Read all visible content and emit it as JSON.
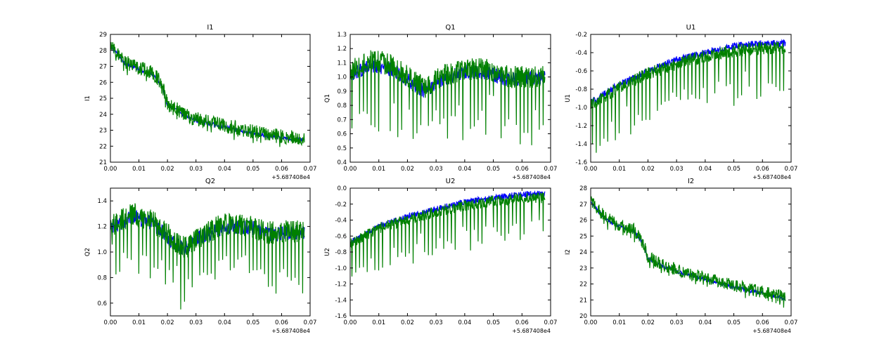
{
  "chart_data": [
    {
      "type": "line",
      "title": "I1",
      "xlabel": "",
      "ylabel": "I1",
      "xlim": [
        0.0,
        0.07
      ],
      "ylim": [
        21,
        29
      ],
      "xticks": [
        "0.00",
        "0.01",
        "0.02",
        "0.03",
        "0.04",
        "0.05",
        "0.06",
        "0.07"
      ],
      "yticks": [
        "21",
        "22",
        "23",
        "24",
        "25",
        "26",
        "27",
        "28",
        "29"
      ],
      "offset_label": "+5.687408e4",
      "series": [
        {
          "name": "blue",
          "color": "#0000ff",
          "x": [
            0.0,
            0.005,
            0.01,
            0.015,
            0.018,
            0.02,
            0.025,
            0.03,
            0.04,
            0.05,
            0.06,
            0.068
          ],
          "y": [
            28.3,
            27.2,
            26.8,
            26.5,
            25.8,
            24.6,
            24.0,
            23.6,
            23.2,
            22.8,
            22.5,
            22.4
          ],
          "noise": 0.12,
          "dips": 0
        },
        {
          "name": "green",
          "color": "#008000",
          "x": [
            0.0,
            0.005,
            0.01,
            0.015,
            0.018,
            0.02,
            0.025,
            0.03,
            0.04,
            0.05,
            0.06,
            0.068
          ],
          "y": [
            28.4,
            27.3,
            26.9,
            26.6,
            25.9,
            24.7,
            24.1,
            23.7,
            23.3,
            22.9,
            22.6,
            22.5
          ],
          "noise": 0.45,
          "dips": 0.4
        }
      ]
    },
    {
      "type": "line",
      "title": "Q1",
      "xlabel": "",
      "ylabel": "Q1",
      "xlim": [
        0.0,
        0.07
      ],
      "ylim": [
        0.4,
        1.3
      ],
      "xticks": [
        "0.00",
        "0.01",
        "0.02",
        "0.03",
        "0.04",
        "0.05",
        "0.06",
        "0.07"
      ],
      "yticks": [
        "0.4",
        "0.5",
        "0.6",
        "0.7",
        "0.8",
        "0.9",
        "1.0",
        "1.1",
        "1.2",
        "1.3"
      ],
      "offset_label": "+5.687408e4",
      "series": [
        {
          "name": "blue",
          "color": "#0000ff",
          "x": [
            0.0,
            0.008,
            0.015,
            0.022,
            0.026,
            0.032,
            0.04,
            0.048,
            0.055,
            0.062,
            0.068
          ],
          "y": [
            1.02,
            1.08,
            1.05,
            0.95,
            0.9,
            0.98,
            1.04,
            1.03,
            0.98,
            0.99,
            1.0
          ],
          "noise": 0.05,
          "dips": 0
        },
        {
          "name": "green",
          "color": "#008000",
          "x": [
            0.0,
            0.008,
            0.015,
            0.022,
            0.026,
            0.032,
            0.04,
            0.048,
            0.055,
            0.062,
            0.068
          ],
          "y": [
            1.05,
            1.12,
            1.08,
            0.97,
            0.92,
            1.0,
            1.06,
            1.05,
            1.0,
            1.0,
            1.0
          ],
          "noise": 0.08,
          "dips": 0.45
        }
      ]
    },
    {
      "type": "line",
      "title": "U1",
      "xlabel": "",
      "ylabel": "U1",
      "xlim": [
        0.0,
        0.07
      ],
      "ylim": [
        -1.6,
        -0.2
      ],
      "xticks": [
        "0.00",
        "0.01",
        "0.02",
        "0.03",
        "0.04",
        "0.05",
        "0.06",
        "0.07"
      ],
      "yticks": [
        "-1.6",
        "-1.4",
        "-1.2",
        "-1.0",
        "-0.8",
        "-0.6",
        "-0.4",
        "-0.2"
      ],
      "offset_label": "+5.687408e4",
      "series": [
        {
          "name": "blue",
          "color": "#0000ff",
          "x": [
            0.0,
            0.01,
            0.02,
            0.03,
            0.04,
            0.05,
            0.06,
            0.068
          ],
          "y": [
            -0.95,
            -0.75,
            -0.6,
            -0.48,
            -0.4,
            -0.33,
            -0.3,
            -0.3
          ],
          "noise": 0.04,
          "dips": 0
        },
        {
          "name": "green",
          "color": "#008000",
          "x": [
            0.0,
            0.01,
            0.02,
            0.03,
            0.04,
            0.05,
            0.06,
            0.068
          ],
          "y": [
            -0.98,
            -0.78,
            -0.63,
            -0.52,
            -0.44,
            -0.38,
            -0.35,
            -0.35
          ],
          "noise": 0.07,
          "dips": 0.55
        }
      ]
    },
    {
      "type": "line",
      "title": "Q2",
      "xlabel": "",
      "ylabel": "Q2",
      "xlim": [
        0.0,
        0.07
      ],
      "ylim": [
        0.5,
        1.5
      ],
      "xticks": [
        "0.00",
        "0.01",
        "0.02",
        "0.03",
        "0.04",
        "0.05",
        "0.06",
        "0.07"
      ],
      "yticks": [
        "0.6",
        "0.8",
        "1.0",
        "1.2",
        "1.4"
      ],
      "offset_label": "+5.687408e4",
      "series": [
        {
          "name": "blue",
          "color": "#0000ff",
          "x": [
            0.0,
            0.008,
            0.015,
            0.022,
            0.026,
            0.032,
            0.04,
            0.048,
            0.055,
            0.062,
            0.068
          ],
          "y": [
            1.18,
            1.28,
            1.22,
            1.08,
            1.02,
            1.12,
            1.2,
            1.2,
            1.14,
            1.15,
            1.16
          ],
          "noise": 0.06,
          "dips": 0
        },
        {
          "name": "green",
          "color": "#008000",
          "x": [
            0.0,
            0.008,
            0.015,
            0.022,
            0.026,
            0.032,
            0.04,
            0.048,
            0.055,
            0.062,
            0.068
          ],
          "y": [
            1.2,
            1.3,
            1.24,
            1.1,
            1.03,
            1.13,
            1.22,
            1.21,
            1.15,
            1.16,
            1.17
          ],
          "noise": 0.09,
          "dips": 0.45
        }
      ]
    },
    {
      "type": "line",
      "title": "U2",
      "xlabel": "",
      "ylabel": "U2",
      "xlim": [
        0.0,
        0.07
      ],
      "ylim": [
        -1.6,
        0.0
      ],
      "xticks": [
        "0.00",
        "0.01",
        "0.02",
        "0.03",
        "0.04",
        "0.05",
        "0.06",
        "0.07"
      ],
      "yticks": [
        "-1.6",
        "-1.4",
        "-1.2",
        "-1.0",
        "-0.8",
        "-0.6",
        "-0.4",
        "-0.2",
        "0.0"
      ],
      "offset_label": "+5.687408e4",
      "series": [
        {
          "name": "blue",
          "color": "#0000ff",
          "x": [
            0.0,
            0.01,
            0.02,
            0.03,
            0.04,
            0.05,
            0.06,
            0.068
          ],
          "y": [
            -0.68,
            -0.48,
            -0.36,
            -0.26,
            -0.18,
            -0.12,
            -0.08,
            -0.07
          ],
          "noise": 0.04,
          "dips": 0
        },
        {
          "name": "green",
          "color": "#008000",
          "x": [
            0.0,
            0.01,
            0.02,
            0.03,
            0.04,
            0.05,
            0.06,
            0.068
          ],
          "y": [
            -0.7,
            -0.5,
            -0.39,
            -0.3,
            -0.22,
            -0.16,
            -0.12,
            -0.12
          ],
          "noise": 0.07,
          "dips": 0.55
        }
      ]
    },
    {
      "type": "line",
      "title": "I2",
      "xlabel": "",
      "ylabel": "I2",
      "xlim": [
        0.0,
        0.07
      ],
      "ylim": [
        20,
        28
      ],
      "xticks": [
        "0.00",
        "0.01",
        "0.02",
        "0.03",
        "0.04",
        "0.05",
        "0.06",
        "0.07"
      ],
      "yticks": [
        "20",
        "21",
        "22",
        "23",
        "24",
        "25",
        "26",
        "27",
        "28"
      ],
      "offset_label": "+5.687408e4",
      "series": [
        {
          "name": "blue",
          "color": "#0000ff",
          "x": [
            0.0,
            0.005,
            0.01,
            0.015,
            0.018,
            0.02,
            0.025,
            0.03,
            0.04,
            0.05,
            0.06,
            0.068
          ],
          "y": [
            27.1,
            26.1,
            25.6,
            25.3,
            24.6,
            23.6,
            23.1,
            22.8,
            22.3,
            21.8,
            21.4,
            21.1
          ],
          "noise": 0.12,
          "dips": 0
        },
        {
          "name": "green",
          "color": "#008000",
          "x": [
            0.0,
            0.005,
            0.01,
            0.015,
            0.018,
            0.02,
            0.025,
            0.03,
            0.04,
            0.05,
            0.06,
            0.068
          ],
          "y": [
            27.2,
            26.2,
            25.7,
            25.4,
            24.7,
            23.7,
            23.2,
            22.9,
            22.4,
            21.9,
            21.5,
            21.2
          ],
          "noise": 0.4,
          "dips": 0.4
        }
      ]
    }
  ]
}
